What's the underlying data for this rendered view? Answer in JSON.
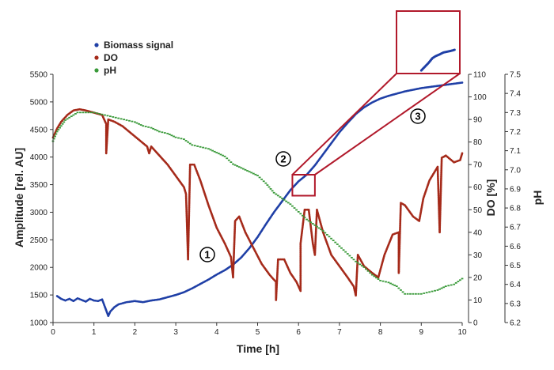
{
  "chart_data": {
    "type": "scatter",
    "xlabel": "Time [h]",
    "ylabel_left": "Amplitude [rel. AU]",
    "ylabel_right_1": "DO [%]",
    "ylabel_right_2": "pH",
    "xlim": [
      0,
      10
    ],
    "ylim_left": [
      1000,
      5500
    ],
    "ylim_right_1": [
      0,
      110
    ],
    "ylim_right_2": [
      6.2,
      7.5
    ],
    "x_ticks": [
      "0",
      "1",
      "2",
      "3",
      "4",
      "5",
      "6",
      "7",
      "8",
      "9",
      "10"
    ],
    "y_left_ticks": [
      "1000",
      "1500",
      "2000",
      "2500",
      "3000",
      "3500",
      "4000",
      "4500",
      "5000",
      "5500"
    ],
    "y_right1_ticks": [
      "0",
      "10",
      "20",
      "30",
      "40",
      "50",
      "60",
      "70",
      "80",
      "90",
      "100",
      "110"
    ],
    "y_right2_ticks": [
      "6.2",
      "6.3",
      "6.4",
      "6.5",
      "6.6",
      "6.7",
      "6.8",
      "6.9",
      "7.0",
      "7.1",
      "7.2",
      "7.3",
      "7.4",
      "7.5"
    ],
    "legend_position": "top-left",
    "series": [
      {
        "name": "Biomass signal",
        "color": "#1f3fa6",
        "axis": "left",
        "points": [
          [
            0.1,
            1480
          ],
          [
            0.2,
            1430
          ],
          [
            0.3,
            1400
          ],
          [
            0.4,
            1430
          ],
          [
            0.5,
            1390
          ],
          [
            0.6,
            1440
          ],
          [
            0.7,
            1410
          ],
          [
            0.8,
            1380
          ],
          [
            0.9,
            1430
          ],
          [
            1.0,
            1400
          ],
          [
            1.1,
            1390
          ],
          [
            1.2,
            1420
          ],
          [
            1.35,
            1120
          ],
          [
            1.4,
            1200
          ],
          [
            1.5,
            1280
          ],
          [
            1.6,
            1330
          ],
          [
            1.7,
            1350
          ],
          [
            1.8,
            1370
          ],
          [
            1.9,
            1380
          ],
          [
            2.0,
            1390
          ],
          [
            2.2,
            1370
          ],
          [
            2.4,
            1400
          ],
          [
            2.6,
            1420
          ],
          [
            2.8,
            1460
          ],
          [
            3.0,
            1500
          ],
          [
            3.2,
            1550
          ],
          [
            3.4,
            1620
          ],
          [
            3.6,
            1700
          ],
          [
            3.8,
            1780
          ],
          [
            4.0,
            1870
          ],
          [
            4.2,
            1950
          ],
          [
            4.4,
            2050
          ],
          [
            4.6,
            2180
          ],
          [
            4.8,
            2350
          ],
          [
            5.0,
            2550
          ],
          [
            5.2,
            2780
          ],
          [
            5.4,
            3000
          ],
          [
            5.6,
            3200
          ],
          [
            5.8,
            3400
          ],
          [
            6.0,
            3560
          ],
          [
            6.2,
            3680
          ],
          [
            6.4,
            3850
          ],
          [
            6.6,
            4050
          ],
          [
            6.8,
            4250
          ],
          [
            7.0,
            4450
          ],
          [
            7.2,
            4620
          ],
          [
            7.4,
            4780
          ],
          [
            7.6,
            4900
          ],
          [
            7.8,
            4990
          ],
          [
            8.0,
            5060
          ],
          [
            8.2,
            5110
          ],
          [
            8.4,
            5150
          ],
          [
            8.6,
            5190
          ],
          [
            8.8,
            5220
          ],
          [
            9.0,
            5250
          ],
          [
            9.2,
            5270
          ],
          [
            9.4,
            5290
          ],
          [
            9.6,
            5310
          ],
          [
            9.8,
            5330
          ],
          [
            10.0,
            5350
          ]
        ]
      },
      {
        "name": "DO",
        "color": "#a52a1a",
        "axis": "right1",
        "points": [
          [
            0.0,
            82
          ],
          [
            0.1,
            86
          ],
          [
            0.2,
            89
          ],
          [
            0.35,
            92
          ],
          [
            0.5,
            94
          ],
          [
            0.65,
            94.5
          ],
          [
            0.8,
            94
          ],
          [
            1.0,
            93
          ],
          [
            1.2,
            92
          ],
          [
            1.3,
            88
          ],
          [
            1.3,
            75
          ],
          [
            1.35,
            90
          ],
          [
            1.5,
            89
          ],
          [
            1.7,
            87
          ],
          [
            1.9,
            84
          ],
          [
            2.1,
            81
          ],
          [
            2.3,
            78
          ],
          [
            2.35,
            75
          ],
          [
            2.4,
            78
          ],
          [
            2.6,
            74
          ],
          [
            2.8,
            70
          ],
          [
            3.0,
            65
          ],
          [
            3.2,
            60
          ],
          [
            3.25,
            57
          ],
          [
            3.3,
            28
          ],
          [
            3.35,
            70
          ],
          [
            3.45,
            70
          ],
          [
            3.6,
            63
          ],
          [
            3.8,
            52
          ],
          [
            4.0,
            42
          ],
          [
            4.2,
            35
          ],
          [
            4.35,
            29
          ],
          [
            4.4,
            20
          ],
          [
            4.45,
            45
          ],
          [
            4.55,
            47
          ],
          [
            4.7,
            40
          ],
          [
            4.9,
            33
          ],
          [
            5.1,
            26
          ],
          [
            5.3,
            21
          ],
          [
            5.45,
            18
          ],
          [
            5.45,
            10
          ],
          [
            5.5,
            28
          ],
          [
            5.65,
            28
          ],
          [
            5.8,
            22
          ],
          [
            5.95,
            18
          ],
          [
            6.05,
            14
          ],
          [
            6.05,
            35
          ],
          [
            6.15,
            50
          ],
          [
            6.25,
            50
          ],
          [
            6.35,
            35
          ],
          [
            6.4,
            30
          ],
          [
            6.45,
            50
          ],
          [
            6.6,
            40
          ],
          [
            6.8,
            30
          ],
          [
            7.0,
            25
          ],
          [
            7.2,
            20
          ],
          [
            7.35,
            16
          ],
          [
            7.4,
            12
          ],
          [
            7.45,
            30
          ],
          [
            7.6,
            25
          ],
          [
            7.8,
            22
          ],
          [
            7.95,
            20
          ],
          [
            8.1,
            30
          ],
          [
            8.3,
            39
          ],
          [
            8.45,
            40
          ],
          [
            8.45,
            22
          ],
          [
            8.5,
            53
          ],
          [
            8.6,
            52
          ],
          [
            8.8,
            47
          ],
          [
            8.95,
            45
          ],
          [
            9.05,
            55
          ],
          [
            9.2,
            63
          ],
          [
            9.4,
            69
          ],
          [
            9.45,
            40
          ],
          [
            9.5,
            73
          ],
          [
            9.6,
            74
          ],
          [
            9.8,
            71
          ],
          [
            9.95,
            72
          ],
          [
            10.0,
            75
          ]
        ]
      },
      {
        "name": "pH",
        "color": "#3a9a3a",
        "axis": "right2",
        "points": [
          [
            0.0,
            7.15
          ],
          [
            0.1,
            7.2
          ],
          [
            0.2,
            7.23
          ],
          [
            0.3,
            7.26
          ],
          [
            0.45,
            7.28
          ],
          [
            0.6,
            7.3
          ],
          [
            0.8,
            7.3
          ],
          [
            1.0,
            7.3
          ],
          [
            1.2,
            7.29
          ],
          [
            1.4,
            7.28
          ],
          [
            1.6,
            7.27
          ],
          [
            1.8,
            7.26
          ],
          [
            2.0,
            7.25
          ],
          [
            2.2,
            7.23
          ],
          [
            2.4,
            7.22
          ],
          [
            2.6,
            7.2
          ],
          [
            2.8,
            7.19
          ],
          [
            3.0,
            7.17
          ],
          [
            3.2,
            7.16
          ],
          [
            3.4,
            7.13
          ],
          [
            3.6,
            7.12
          ],
          [
            3.8,
            7.11
          ],
          [
            4.0,
            7.09
          ],
          [
            4.2,
            7.07
          ],
          [
            4.4,
            7.03
          ],
          [
            4.6,
            7.01
          ],
          [
            4.8,
            6.99
          ],
          [
            5.0,
            6.97
          ],
          [
            5.2,
            6.93
          ],
          [
            5.4,
            6.88
          ],
          [
            5.6,
            6.85
          ],
          [
            5.8,
            6.82
          ],
          [
            6.0,
            6.78
          ],
          [
            6.2,
            6.74
          ],
          [
            6.4,
            6.71
          ],
          [
            6.6,
            6.68
          ],
          [
            6.8,
            6.64
          ],
          [
            7.0,
            6.6
          ],
          [
            7.2,
            6.56
          ],
          [
            7.4,
            6.52
          ],
          [
            7.6,
            6.49
          ],
          [
            7.8,
            6.45
          ],
          [
            8.0,
            6.42
          ],
          [
            8.2,
            6.41
          ],
          [
            8.4,
            6.39
          ],
          [
            8.6,
            6.35
          ],
          [
            8.8,
            6.35
          ],
          [
            9.0,
            6.35
          ],
          [
            9.2,
            6.36
          ],
          [
            9.4,
            6.37
          ],
          [
            9.6,
            6.39
          ],
          [
            9.8,
            6.4
          ],
          [
            10.0,
            6.43
          ]
        ]
      }
    ],
    "inset": {
      "xlim": [
        5.8,
        6.4
      ],
      "points": [
        [
          5.9,
          3320
        ],
        [
          5.95,
          3370
        ],
        [
          6.0,
          3420
        ],
        [
          6.05,
          3480
        ],
        [
          6.1,
          3510
        ],
        [
          6.15,
          3530
        ],
        [
          6.2,
          3555
        ],
        [
          6.25,
          3565
        ],
        [
          6.3,
          3575
        ],
        [
          6.35,
          3590
        ]
      ]
    },
    "annotations": [
      "1",
      "2",
      "3"
    ]
  }
}
